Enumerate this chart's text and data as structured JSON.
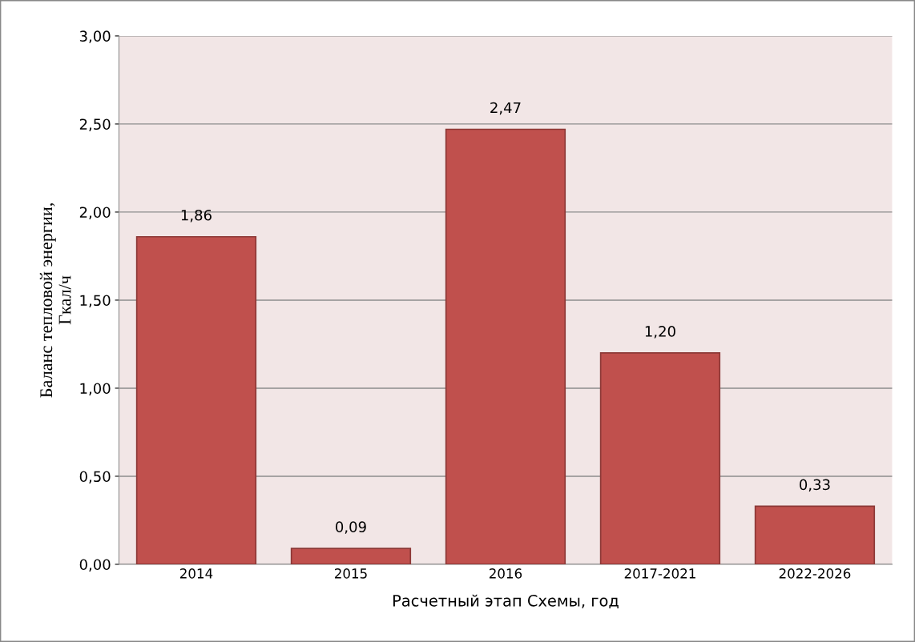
{
  "chart_data": {
    "type": "bar",
    "categories": [
      "2014",
      "2015",
      "2016",
      "2017-2021",
      "2022-2026"
    ],
    "values": [
      1.86,
      0.09,
      2.47,
      1.2,
      0.33
    ],
    "value_labels": [
      "1,86",
      "0,09",
      "2,47",
      "1,20",
      "0,33"
    ],
    "color": "#c0504d",
    "xlabel": "Расчетный этап Схемы, год",
    "ylabel": "Баланс тепловой энергии,\nГкал/ч",
    "ylim": [
      0,
      3
    ],
    "yticks": [
      {
        "value": 0,
        "label": "0,00"
      },
      {
        "value": 0.5,
        "label": "0,50"
      },
      {
        "value": 1,
        "label": "1,00"
      },
      {
        "value": 1.5,
        "label": "1,50"
      },
      {
        "value": 2,
        "label": "2,00"
      },
      {
        "value": 2.5,
        "label": "2,50"
      },
      {
        "value": 3,
        "label": "3,00"
      }
    ],
    "grid": "y",
    "legend": false
  }
}
